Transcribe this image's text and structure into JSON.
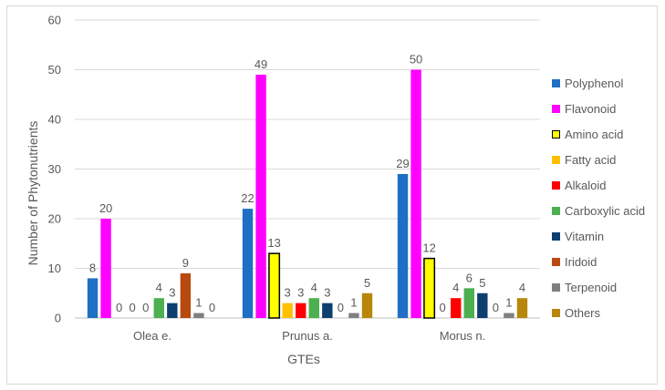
{
  "chart_data": {
    "type": "bar",
    "title": "",
    "xlabel": "GTEs",
    "ylabel": "Number of Phytonutrients",
    "ylim": [
      0,
      60
    ],
    "yticks": [
      0,
      10,
      20,
      30,
      40,
      50,
      60
    ],
    "grid": true,
    "legend_position": "right",
    "categories": [
      "Olea e.",
      "Prunus a.",
      "Morus n."
    ],
    "series": [
      {
        "name": "Polyphenol",
        "color": "#1f6fc4",
        "values": [
          8,
          22,
          29
        ]
      },
      {
        "name": "Flavonoid",
        "color": "#ff00ff",
        "values": [
          20,
          49,
          50
        ]
      },
      {
        "name": "Amino acid",
        "color": "#ffff00",
        "stroke": "#000000",
        "values": [
          0,
          13,
          12
        ]
      },
      {
        "name": "Fatty acid",
        "color": "#ffc000",
        "values": [
          0,
          3,
          0
        ]
      },
      {
        "name": "Alkaloid",
        "color": "#ff0000",
        "values": [
          0,
          3,
          4
        ]
      },
      {
        "name": "Carboxylic acid",
        "color": "#4caf50",
        "values": [
          4,
          4,
          6
        ]
      },
      {
        "name": "Vitamin",
        "color": "#0d3f6e",
        "values": [
          3,
          3,
          5
        ]
      },
      {
        "name": "Iridoid",
        "color": "#b84a0f",
        "values": [
          9,
          0,
          0
        ]
      },
      {
        "name": "Terpenoid",
        "color": "#7f7f7f",
        "values": [
          1,
          1,
          1
        ]
      },
      {
        "name": "Others",
        "color": "#b8860b",
        "values": [
          0,
          5,
          4
        ]
      }
    ],
    "data_labels": [
      [
        "8",
        "20",
        "0",
        "0",
        "0",
        "4",
        "3",
        "9",
        "1",
        "0"
      ],
      [
        "22",
        "49",
        "13",
        "3",
        "3",
        "4",
        "3",
        "0",
        "1",
        "5"
      ],
      [
        "29",
        "50",
        "12",
        "0",
        "4",
        "6",
        "5",
        "0",
        "1",
        "4"
      ]
    ]
  }
}
